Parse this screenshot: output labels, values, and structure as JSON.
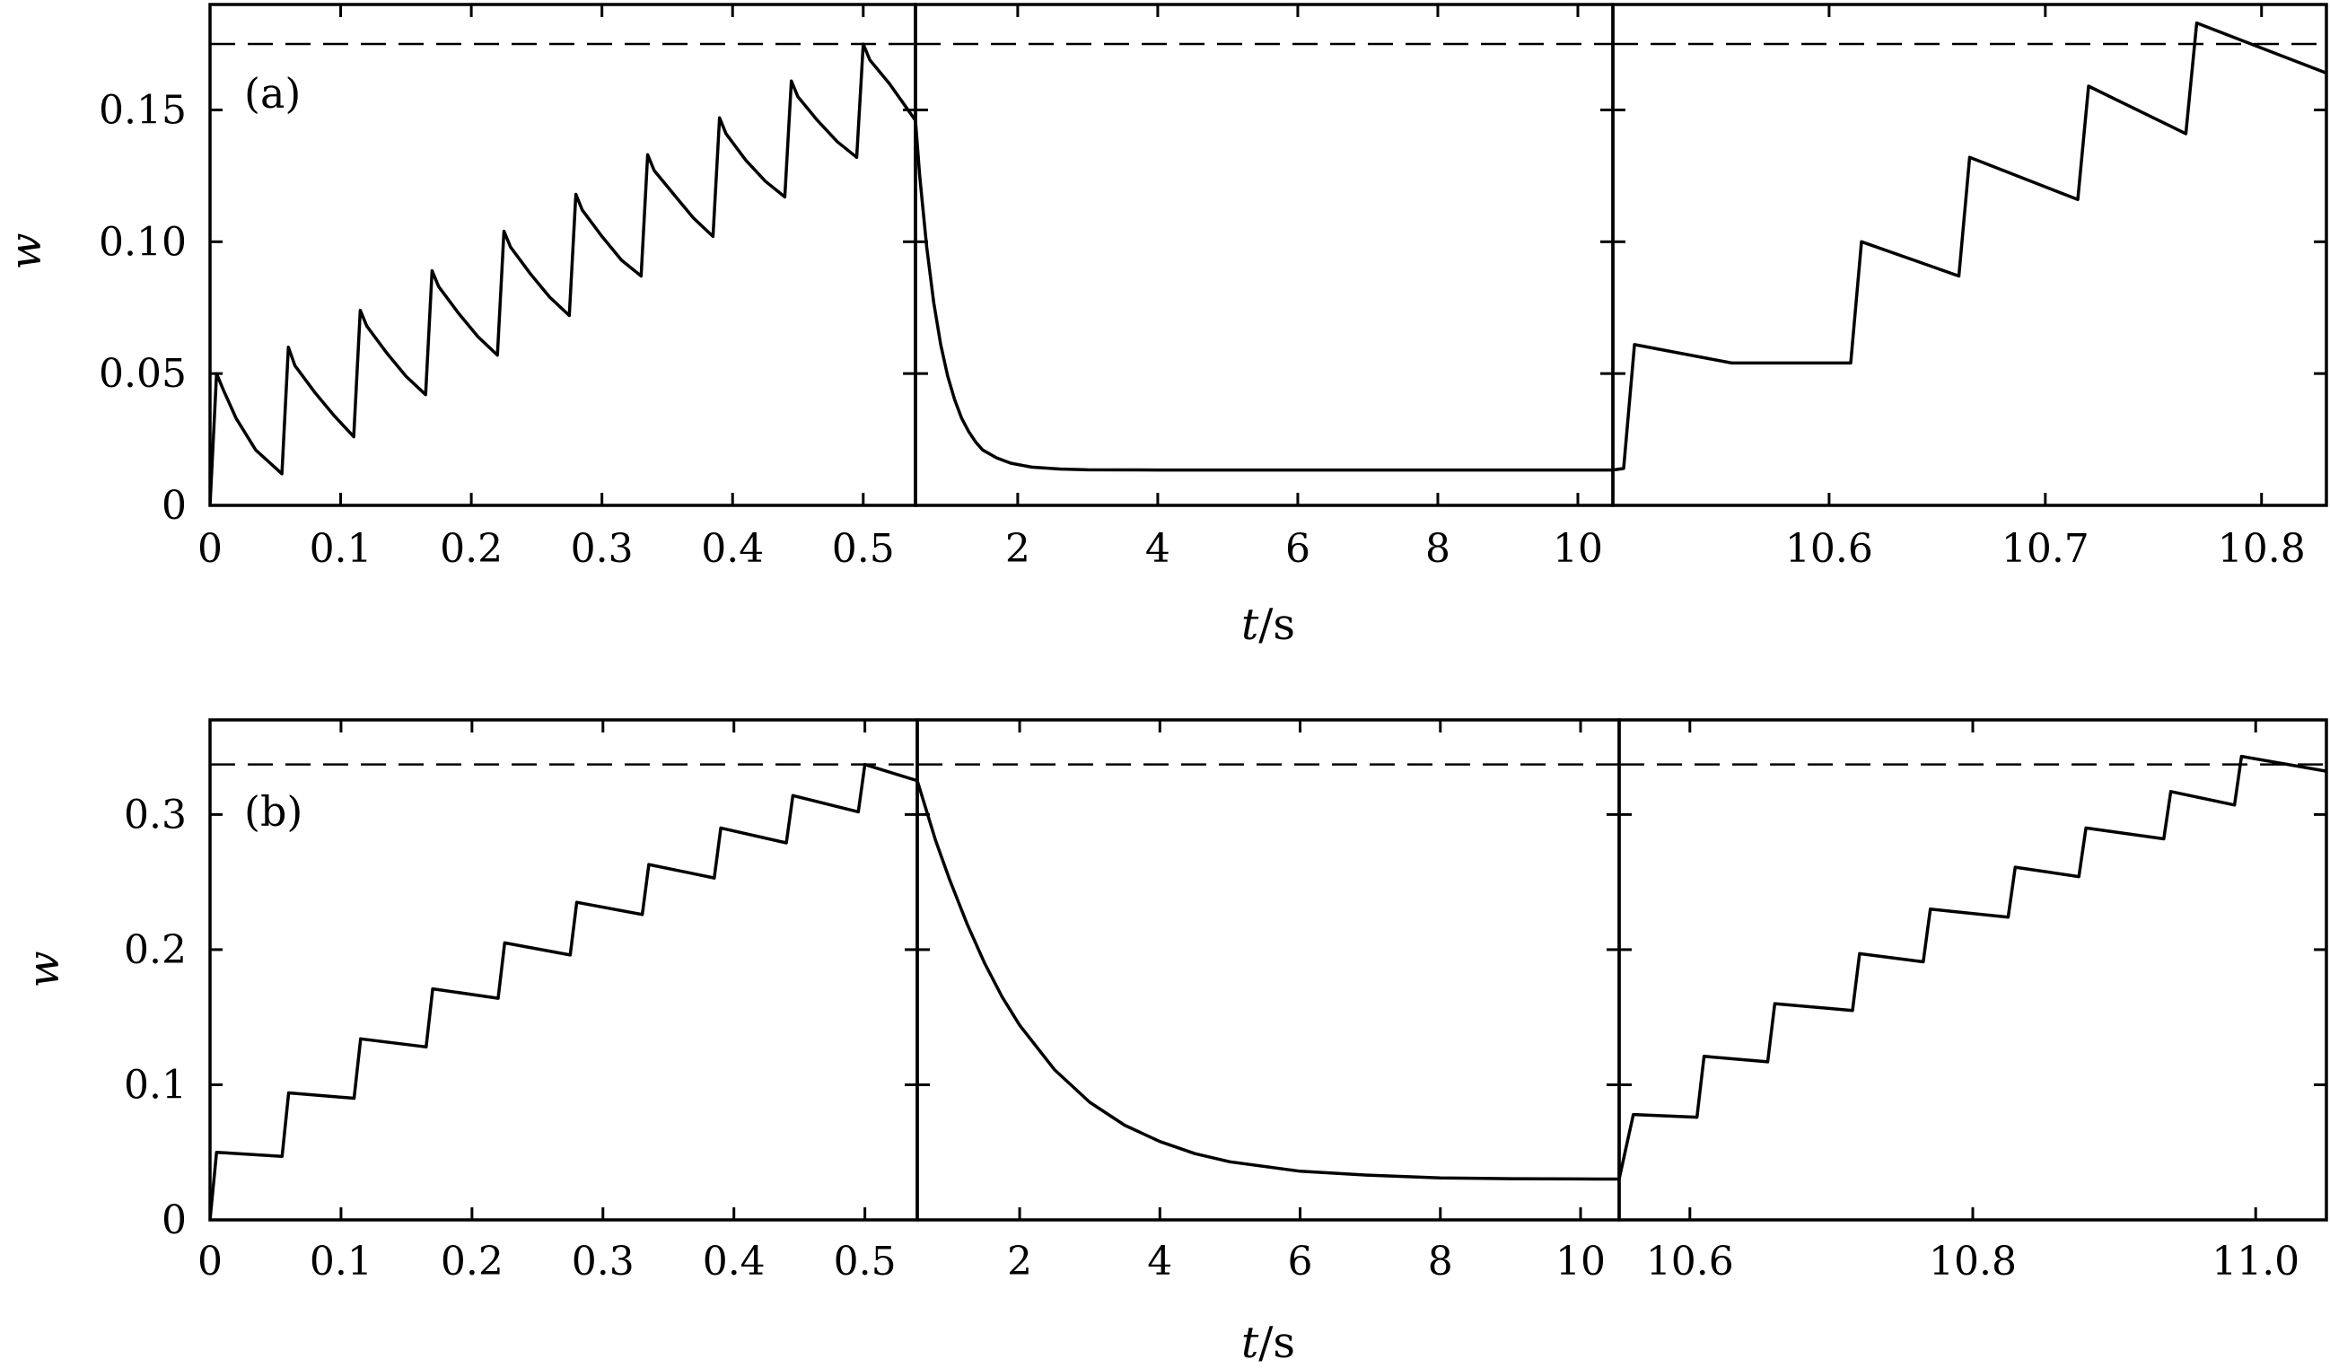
{
  "chart_data": [
    {
      "type": "line",
      "panel_label": "(a)",
      "ylabel": "w",
      "xlabel_var": "t",
      "xlabel_unit": "/s",
      "ylim": [
        0,
        0.19
      ],
      "yticks": [
        0,
        0.05,
        0.1,
        0.15
      ],
      "ytick_labels": [
        "0",
        "0.05",
        "0.10",
        "0.15"
      ],
      "threshold": 0.175,
      "segments": [
        {
          "xlim": [
            0,
            0.54
          ],
          "xticks": [
            0,
            0.1,
            0.2,
            0.3,
            0.4,
            0.5
          ],
          "xtick_labels": [
            "0",
            "0.1",
            "0.2",
            "0.3",
            "0.4",
            "0.5"
          ],
          "series": [
            {
              "x": [
                0,
                0.005,
                0.01,
                0.02,
                0.035,
                0.055,
                0.06,
                0.065,
                0.08,
                0.095,
                0.11,
                0.115,
                0.12,
                0.135,
                0.15,
                0.165,
                0.17,
                0.175,
                0.19,
                0.205,
                0.22,
                0.225,
                0.23,
                0.245,
                0.26,
                0.275,
                0.28,
                0.285,
                0.3,
                0.315,
                0.33,
                0.335,
                0.34,
                0.355,
                0.37,
                0.385,
                0.39,
                0.395,
                0.41,
                0.425,
                0.44,
                0.445,
                0.45,
                0.465,
                0.48,
                0.495,
                0.5,
                0.505,
                0.52,
                0.54
              ],
              "y": [
                0,
                0.05,
                0.044,
                0.033,
                0.021,
                0.012,
                0.06,
                0.053,
                0.043,
                0.034,
                0.026,
                0.074,
                0.068,
                0.058,
                0.049,
                0.042,
                0.089,
                0.083,
                0.073,
                0.064,
                0.057,
                0.104,
                0.098,
                0.088,
                0.079,
                0.072,
                0.118,
                0.112,
                0.102,
                0.093,
                0.087,
                0.133,
                0.127,
                0.118,
                0.109,
                0.102,
                0.147,
                0.141,
                0.131,
                0.123,
                0.117,
                0.161,
                0.155,
                0.146,
                0.138,
                0.132,
                0.175,
                0.169,
                0.16,
                0.146
              ]
            }
          ]
        },
        {
          "xlim": [
            0.54,
            10.5
          ],
          "xticks": [
            2,
            4,
            6,
            8,
            10
          ],
          "xtick_labels": [
            "2",
            "4",
            "6",
            "8",
            "10"
          ],
          "series": [
            {
              "x": [
                0.54,
                0.6,
                0.7,
                0.8,
                0.9,
                1.0,
                1.1,
                1.2,
                1.3,
                1.4,
                1.5,
                1.7,
                1.9,
                2.2,
                2.6,
                3.0,
                4.0,
                5.0,
                6.0,
                7.0,
                8.0,
                9.0,
                10.0,
                10.5
              ],
              "y": [
                0.146,
                0.125,
                0.098,
                0.077,
                0.061,
                0.049,
                0.04,
                0.033,
                0.028,
                0.024,
                0.021,
                0.018,
                0.016,
                0.0145,
                0.0138,
                0.0135,
                0.0134,
                0.0134,
                0.0134,
                0.0134,
                0.0134,
                0.0134,
                0.0134,
                0.0134
              ]
            }
          ]
        },
        {
          "xlim": [
            10.5,
            10.83
          ],
          "xticks": [
            10.6,
            10.7,
            10.8
          ],
          "xtick_labels": [
            "10.6",
            "10.7",
            "10.8"
          ],
          "series": [
            {
              "x": [
                10.5,
                10.505,
                10.51,
                10.555,
                10.56,
                10.61,
                10.615,
                10.66,
                10.665,
                10.715,
                10.72,
                10.765,
                10.77,
                10.83
              ],
              "y": [
                0.0134,
                0.014,
                0.061,
                0.054,
                0.054,
                0.054,
                0.1,
                0.087,
                0.132,
                0.116,
                0.159,
                0.141,
                0.183,
                0.164
              ]
            }
          ]
        }
      ]
    },
    {
      "type": "line",
      "panel_label": "(b)",
      "ylabel": "w",
      "xlabel_var": "t",
      "xlabel_unit": "/s",
      "ylim": [
        0,
        0.37
      ],
      "yticks": [
        0,
        0.1,
        0.2,
        0.3
      ],
      "ytick_labels": [
        "0",
        "0.1",
        "0.2",
        "0.3"
      ],
      "threshold": 0.337,
      "segments": [
        {
          "xlim": [
            0,
            0.54
          ],
          "xticks": [
            0,
            0.1,
            0.2,
            0.3,
            0.4,
            0.5
          ],
          "xtick_labels": [
            "0",
            "0.1",
            "0.2",
            "0.3",
            "0.4",
            "0.5"
          ],
          "series": [
            {
              "x": [
                0,
                0.005,
                0.055,
                0.06,
                0.11,
                0.115,
                0.165,
                0.17,
                0.22,
                0.225,
                0.275,
                0.28,
                0.33,
                0.335,
                0.385,
                0.39,
                0.44,
                0.445,
                0.495,
                0.5,
                0.54
              ],
              "y": [
                0,
                0.05,
                0.047,
                0.094,
                0.09,
                0.134,
                0.128,
                0.171,
                0.164,
                0.205,
                0.196,
                0.235,
                0.226,
                0.263,
                0.253,
                0.29,
                0.279,
                0.314,
                0.302,
                0.337,
                0.325
              ]
            }
          ]
        },
        {
          "xlim": [
            0.54,
            10.55
          ],
          "xticks": [
            2,
            4,
            6,
            8,
            10
          ],
          "xtick_labels": [
            "2",
            "4",
            "6",
            "8",
            "10"
          ],
          "series": [
            {
              "x": [
                0.54,
                0.8,
                1.0,
                1.25,
                1.5,
                1.75,
                2.0,
                2.5,
                3.0,
                3.5,
                4.0,
                4.5,
                5.0,
                6.0,
                7.0,
                8.0,
                9.0,
                10.0,
                10.55
              ],
              "y": [
                0.325,
                0.281,
                0.252,
                0.219,
                0.19,
                0.165,
                0.144,
                0.111,
                0.087,
                0.07,
                0.058,
                0.049,
                0.043,
                0.036,
                0.033,
                0.031,
                0.0305,
                0.0303,
                0.0302
              ]
            }
          ]
        },
        {
          "xlim": [
            10.55,
            11.05
          ],
          "xticks": [
            10.6,
            10.8,
            11.0
          ],
          "xtick_labels": [
            "10.6",
            "10.8",
            "11.0"
          ],
          "series": [
            {
              "x": [
                10.55,
                10.56,
                10.605,
                10.61,
                10.655,
                10.66,
                10.715,
                10.72,
                10.765,
                10.77,
                10.825,
                10.83,
                10.875,
                10.88,
                10.935,
                10.94,
                10.985,
                10.99,
                11.05
              ],
              "y": [
                0.0302,
                0.078,
                0.076,
                0.121,
                0.117,
                0.16,
                0.155,
                0.197,
                0.191,
                0.23,
                0.224,
                0.261,
                0.254,
                0.29,
                0.282,
                0.317,
                0.307,
                0.343,
                0.332
              ]
            }
          ]
        }
      ]
    }
  ]
}
